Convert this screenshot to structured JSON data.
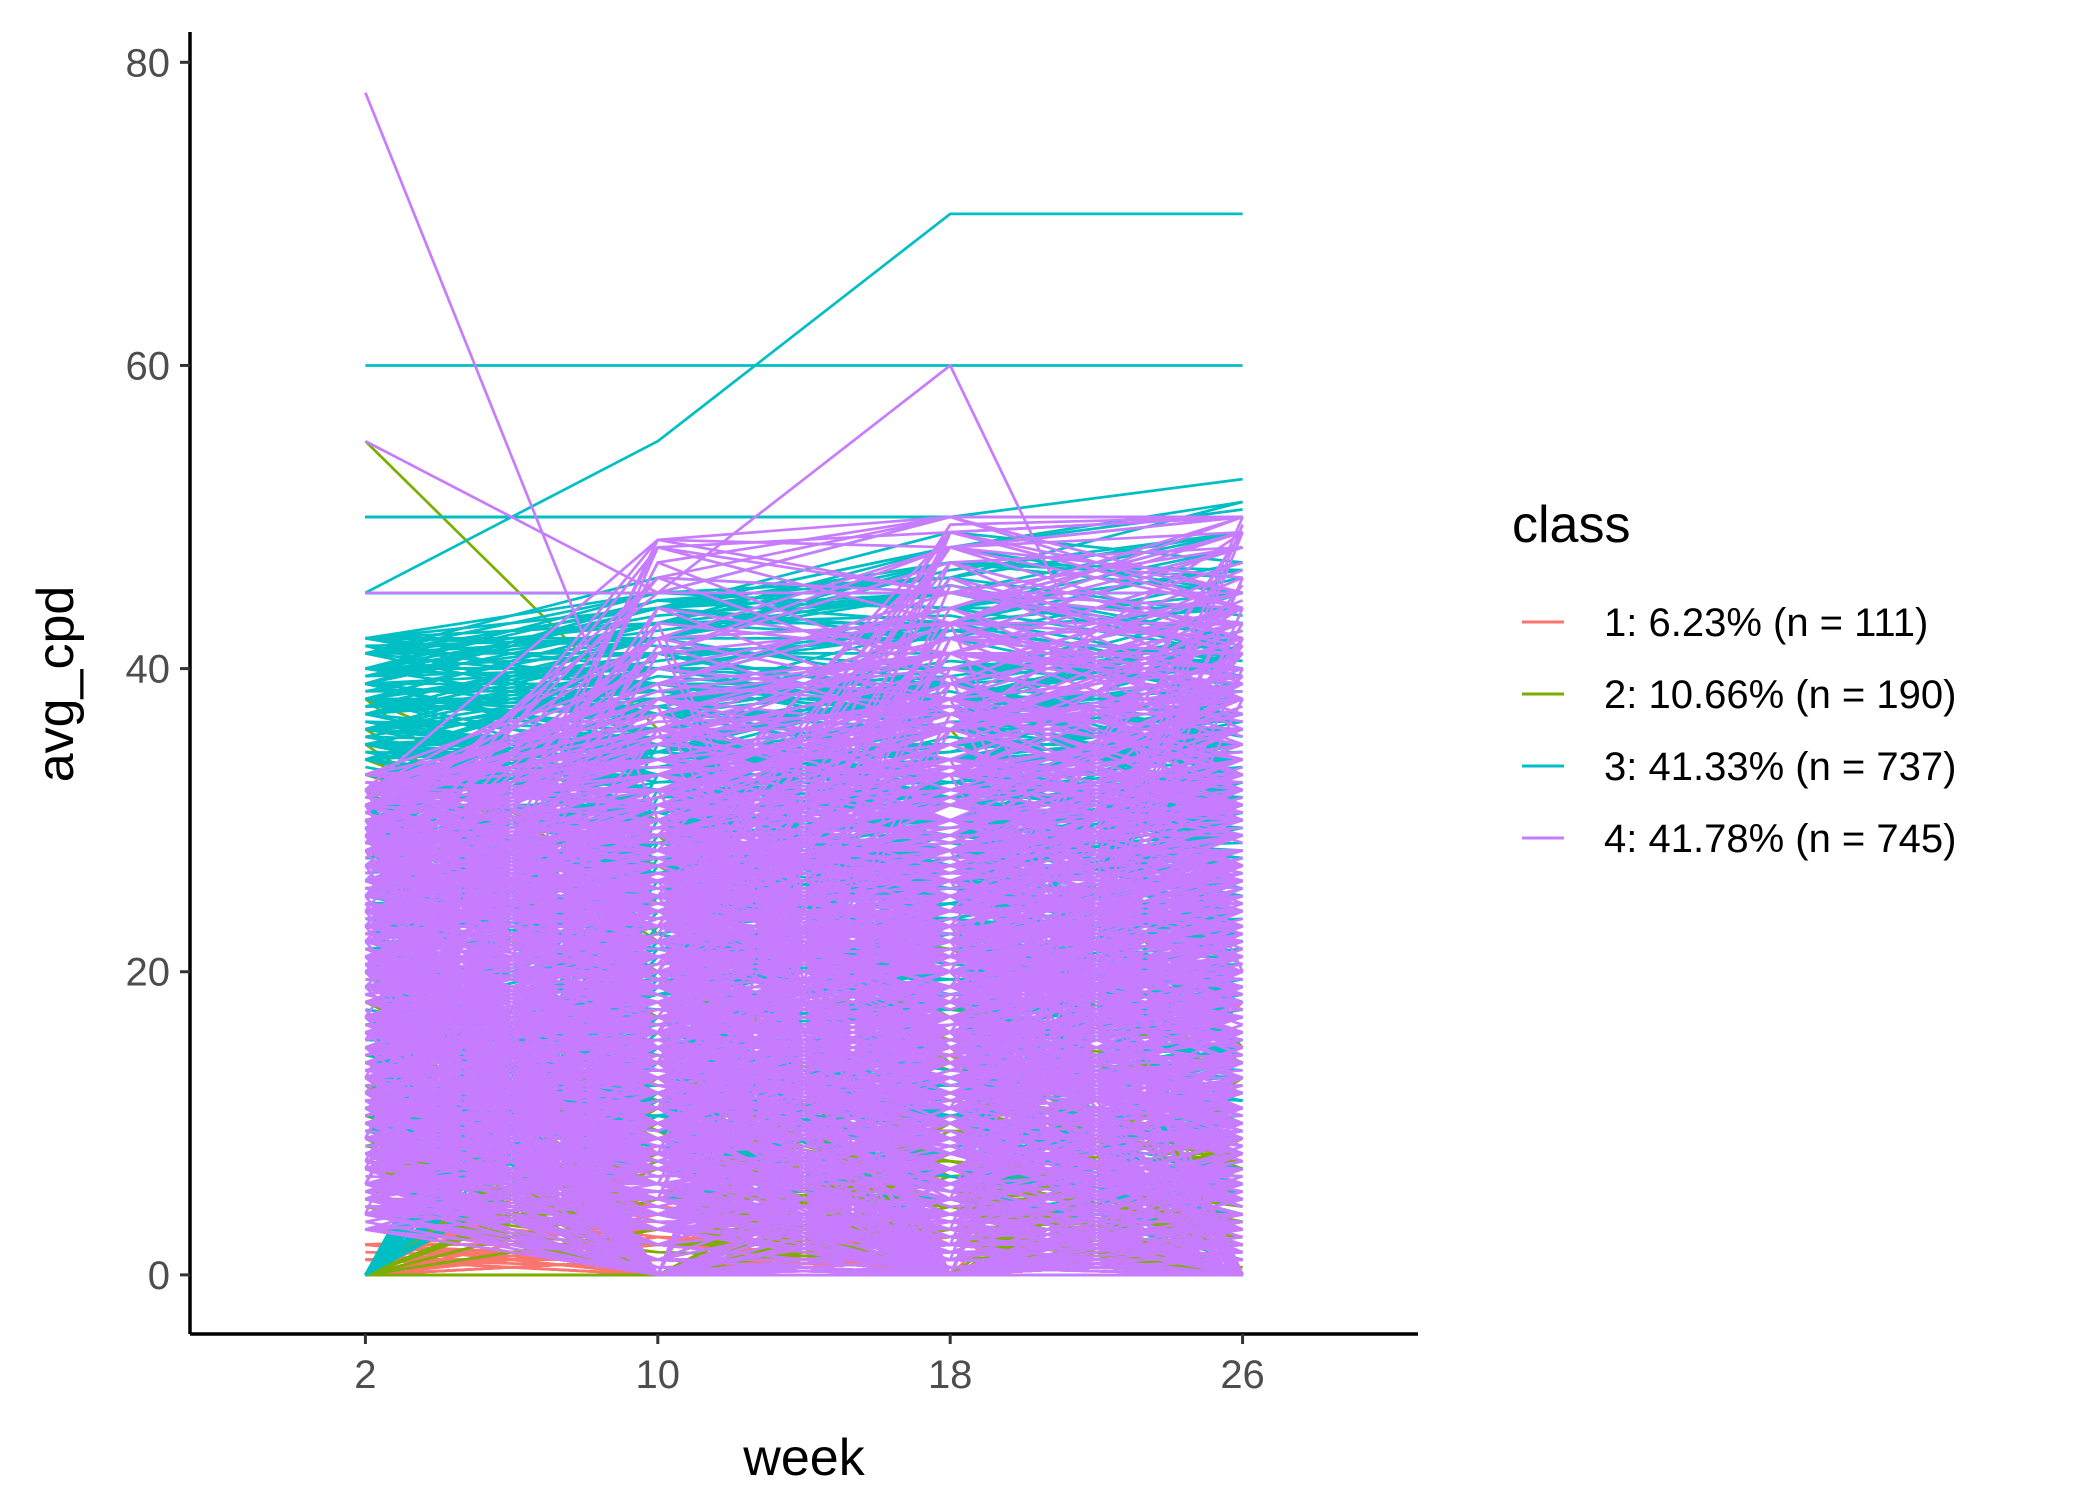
{
  "chart_data": {
    "type": "line",
    "title": "",
    "xlabel": "week",
    "ylabel": "avg_cpd",
    "x": [
      2,
      10,
      18,
      26
    ],
    "x_tick_labels": [
      "2",
      "10",
      "18",
      "26"
    ],
    "y_tick_labels": [
      "0",
      "20",
      "40",
      "60",
      "80"
    ],
    "xlim": [
      -2.8,
      30.8
    ],
    "ylim": [
      -3.9,
      82
    ],
    "grid": false,
    "legend": {
      "title": "class",
      "placement": "right",
      "entries": [
        {
          "label": "1: 6.23% (n = 111)",
          "color": "#F8766D"
        },
        {
          "label": "2: 10.66% (n = 190)",
          "color": "#7CAE00"
        },
        {
          "label": "3: 41.33% (n = 737)",
          "color": "#00BFC4"
        },
        {
          "label": "4: 41.78% (n = 745)",
          "color": "#C77CFF"
        }
      ]
    },
    "series": [
      {
        "class": "1",
        "color": "#F8766D",
        "count": 111,
        "values_range": [
          0,
          25
        ],
        "representative": [
          [
            21,
            8,
            0,
            1
          ],
          [
            10,
            4,
            2,
            0
          ],
          [
            6,
            3,
            1,
            2
          ],
          [
            4,
            1,
            0,
            0
          ],
          [
            2,
            0,
            1,
            0
          ],
          [
            1,
            1,
            0,
            0
          ]
        ]
      },
      {
        "class": "2",
        "color": "#7CAE00",
        "count": 190,
        "values_range": [
          0,
          55
        ],
        "representative": [
          [
            55,
            36,
            36,
            15
          ],
          [
            15,
            10,
            6,
            5
          ],
          [
            10,
            6,
            4,
            3
          ],
          [
            20,
            18,
            18,
            10
          ],
          [
            8,
            6,
            5,
            0
          ],
          [
            12,
            8,
            0,
            0
          ]
        ]
      },
      {
        "class": "3",
        "color": "#00BFC4",
        "count": 737,
        "values_range": [
          0,
          70
        ],
        "representative": [
          [
            60,
            60,
            60,
            60
          ],
          [
            45,
            55,
            70,
            70
          ],
          [
            50,
            50,
            50,
            50
          ],
          [
            40,
            40,
            40,
            40
          ],
          [
            0,
            30,
            25,
            25
          ],
          [
            30,
            30,
            30,
            30
          ],
          [
            20,
            20,
            20,
            20
          ]
        ]
      },
      {
        "class": "4",
        "color": "#C77CFF",
        "count": 745,
        "values_range": [
          0,
          78
        ],
        "representative": [
          [
            78,
            30,
            15,
            10
          ],
          [
            55,
            45,
            60,
            20
          ],
          [
            45,
            45,
            45,
            45
          ],
          [
            30,
            15,
            5,
            50
          ],
          [
            20,
            10,
            0,
            40
          ],
          [
            10,
            15,
            25,
            15
          ]
        ]
      }
    ]
  }
}
